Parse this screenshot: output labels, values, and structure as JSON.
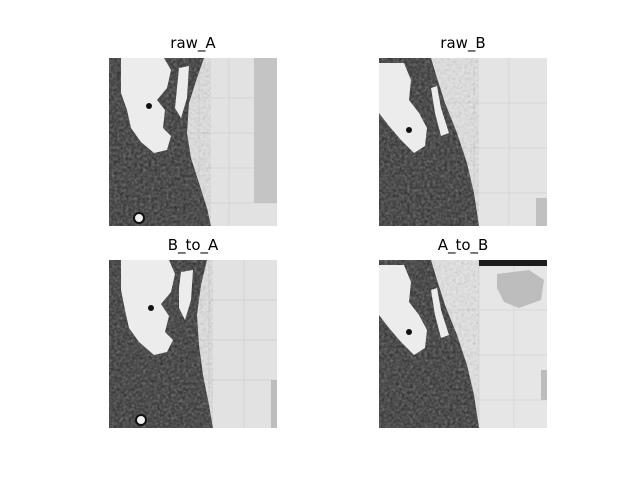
{
  "figure": {
    "background": "#ffffff",
    "panels": [
      {
        "id": "raw_A",
        "title": "raw_A",
        "colormap": "grayscale"
      },
      {
        "id": "raw_B",
        "title": "raw_B",
        "colormap": "grayscale"
      },
      {
        "id": "B_to_A",
        "title": "B_to_A",
        "colormap": "grayscale"
      },
      {
        "id": "A_to_B",
        "title": "A_to_B",
        "colormap": "grayscale"
      }
    ]
  }
}
